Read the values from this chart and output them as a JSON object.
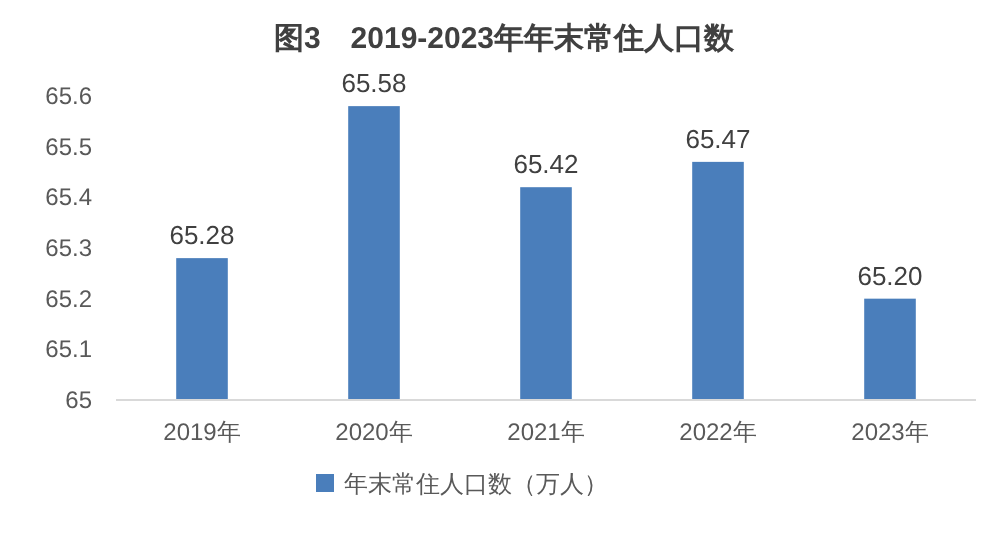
{
  "chart_data": {
    "type": "bar",
    "title": "图3　2019-2023年年末常住人口数",
    "categories": [
      "2019年",
      "2020年",
      "2021年",
      "2022年",
      "2023年"
    ],
    "series": [
      {
        "name": "年末常住人口数（万人）",
        "color": "#4a7ebb",
        "values": [
          65.28,
          65.58,
          65.42,
          65.47,
          65.2
        ],
        "value_labels": [
          "65.28",
          "65.58",
          "65.42",
          "65.47",
          "65.20"
        ]
      }
    ],
    "ylim": [
      65,
      65.6
    ],
    "yticks": [
      65,
      {
        "value": 65.1,
        "label": "65.1"
      },
      {
        "value": 65.2,
        "label": "65.2"
      },
      {
        "value": 65.3,
        "label": "65.3"
      },
      {
        "value": 65.4,
        "label": "65.4"
      },
      {
        "value": 65.5,
        "label": "65.5"
      },
      {
        "value": 65.6,
        "label": "65.6"
      }
    ],
    "grid": false,
    "legend": "bottom"
  }
}
